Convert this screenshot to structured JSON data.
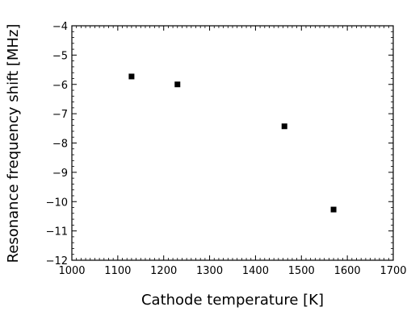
{
  "chart_data": {
    "type": "scatter",
    "title": "",
    "xlabel": "Cathode temperature [K]",
    "ylabel": "Resonance frequency shift [MHz]",
    "xlim": [
      1000,
      1700
    ],
    "ylim": [
      -12,
      -4
    ],
    "xticks": [
      1000,
      1100,
      1200,
      1300,
      1400,
      1500,
      1600,
      1700
    ],
    "yticks": [
      -4,
      -5,
      -6,
      -7,
      -8,
      -9,
      -10,
      -11,
      -12
    ],
    "ytick_labels": [
      "−4",
      "−5",
      "−6",
      "−7",
      "−8",
      "−9",
      "−10",
      "−11",
      "−12"
    ],
    "grid": false,
    "legend": "none",
    "marker": "square",
    "marker_color": "#000000",
    "series": [
      {
        "x": [
          1130,
          1230,
          1463,
          1570
        ],
        "y": [
          -5.73,
          -6.0,
          -7.43,
          -10.27
        ]
      }
    ]
  }
}
